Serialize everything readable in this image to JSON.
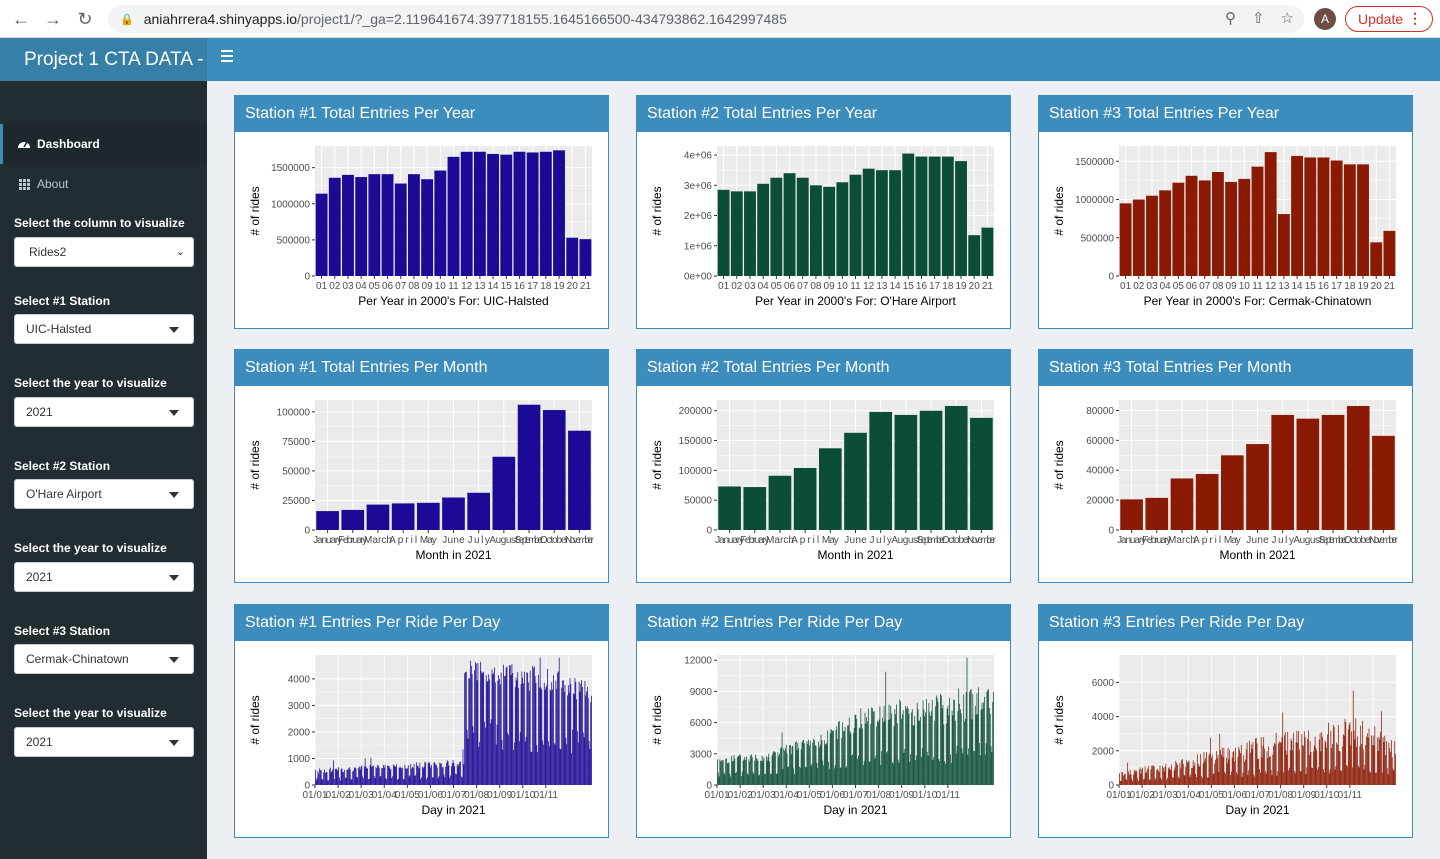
{
  "browser": {
    "url_host": "aniahrrera4.shinyapps.io",
    "url_path": "/project1/?_ga=2.119641674.397718155.1645166500-434793862.1642997485",
    "avatar_letter": "A",
    "update_label": "Update"
  },
  "app": {
    "title": "Project 1 CTA DATA -"
  },
  "sidebar": {
    "menu": [
      {
        "label": "Dashboard",
        "icon": "dashboard-icon"
      },
      {
        "label": "About",
        "icon": "th-icon"
      }
    ],
    "controls": [
      {
        "label": "Select the column to visualize",
        "value": "Rides2"
      },
      {
        "label": "Select #1 Station",
        "value": "UIC-Halsted"
      },
      {
        "label": "Select the year to visualize",
        "value": "2021"
      },
      {
        "label": "Select #2 Station",
        "value": "O'Hare Airport"
      },
      {
        "label": "Select the year to visualize",
        "value": "2021"
      },
      {
        "label": "Select #3 Station",
        "value": "Cermak-Chinatown"
      },
      {
        "label": "Select the year to visualize",
        "value": "2021"
      }
    ]
  },
  "colors": {
    "station1": "#1a0a96",
    "station2": "#0b4d38",
    "station3": "#8b1a05",
    "header": "#3c8dbc",
    "sidebar": "#222d32"
  },
  "chart_data": [
    {
      "id": "s1-year",
      "title": "Station #1 Total Entries Per Year",
      "type": "bar",
      "color_key": "station1",
      "xlabel": "Per Year in 2000's For: UIC-Halsted",
      "ylabel": "# of rides",
      "categories": [
        "01",
        "02",
        "03",
        "04",
        "05",
        "06",
        "07",
        "08",
        "09",
        "10",
        "11",
        "12",
        "13",
        "14",
        "15",
        "16",
        "17",
        "18",
        "19",
        "20",
        "21"
      ],
      "values": [
        1140000,
        1360000,
        1400000,
        1370000,
        1410000,
        1410000,
        1280000,
        1410000,
        1340000,
        1460000,
        1650000,
        1720000,
        1720000,
        1690000,
        1680000,
        1720000,
        1710000,
        1720000,
        1740000,
        530000,
        510000
      ],
      "ylim": [
        0,
        1800000
      ],
      "yticks": [
        0,
        500000,
        1000000,
        1500000
      ],
      "ytick_labels": [
        "0",
        "500000",
        "1000000",
        "1500000"
      ]
    },
    {
      "id": "s2-year",
      "title": "Station #2 Total Entries Per Year",
      "type": "bar",
      "color_key": "station2",
      "xlabel": "Per Year in 2000's For: O'Hare Airport",
      "ylabel": "# of rides",
      "categories": [
        "01",
        "02",
        "03",
        "04",
        "05",
        "06",
        "07",
        "08",
        "09",
        "10",
        "11",
        "12",
        "13",
        "14",
        "15",
        "16",
        "17",
        "18",
        "19",
        "20",
        "21"
      ],
      "values": [
        2850000,
        2800000,
        2800000,
        3050000,
        3250000,
        3400000,
        3250000,
        3000000,
        2950000,
        3100000,
        3350000,
        3550000,
        3500000,
        3500000,
        4050000,
        3950000,
        3950000,
        3950000,
        3800000,
        1350000,
        1600000
      ],
      "ylim": [
        0,
        4300000
      ],
      "yticks": [
        0,
        1000000,
        2000000,
        3000000,
        4000000
      ],
      "ytick_labels": [
        "0e+00",
        "1e+06",
        "2e+06",
        "3e+06",
        "4e+06"
      ]
    },
    {
      "id": "s3-year",
      "title": "Station #3 Total Entries Per Year",
      "type": "bar",
      "color_key": "station3",
      "xlabel": "Per Year in 2000's For: Cermak-Chinatown",
      "ylabel": "# of rides",
      "categories": [
        "01",
        "02",
        "03",
        "04",
        "05",
        "06",
        "07",
        "08",
        "09",
        "10",
        "11",
        "12",
        "13",
        "14",
        "15",
        "16",
        "17",
        "18",
        "19",
        "20",
        "21"
      ],
      "values": [
        950000,
        1000000,
        1050000,
        1120000,
        1220000,
        1310000,
        1250000,
        1360000,
        1230000,
        1270000,
        1430000,
        1620000,
        810000,
        1570000,
        1550000,
        1550000,
        1510000,
        1460000,
        1460000,
        440000,
        590000
      ],
      "ylim": [
        0,
        1700000
      ],
      "yticks": [
        0,
        500000,
        1000000,
        1500000
      ],
      "ytick_labels": [
        "0",
        "500000",
        "1000000",
        "1500000"
      ]
    },
    {
      "id": "s1-month",
      "title": "Station #1 Total Entries Per Month",
      "type": "bar",
      "color_key": "station1",
      "xlabel": "Month in 2021",
      "ylabel": "# of rides",
      "categories": [
        "January",
        "February",
        "March",
        "April",
        "May",
        "June",
        "July",
        "August",
        "September",
        "October",
        "November"
      ],
      "values": [
        16000,
        17000,
        21500,
        22500,
        23000,
        27500,
        31500,
        62000,
        106000,
        101500,
        84000
      ],
      "ylim": [
        0,
        110000
      ],
      "yticks": [
        0,
        25000,
        50000,
        75000,
        100000
      ],
      "ytick_labels": [
        "0",
        "25000",
        "50000",
        "75000",
        "100000"
      ]
    },
    {
      "id": "s2-month",
      "title": "Station #2 Total Entries Per Month",
      "type": "bar",
      "color_key": "station2",
      "xlabel": "Month in 2021",
      "ylabel": "# of rides",
      "categories": [
        "January",
        "February",
        "March",
        "April",
        "May",
        "June",
        "July",
        "August",
        "September",
        "October",
        "November"
      ],
      "values": [
        73000,
        72000,
        91000,
        104000,
        137000,
        163000,
        198000,
        193000,
        200000,
        208000,
        188000
      ],
      "ylim": [
        0,
        218000
      ],
      "yticks": [
        0,
        50000,
        100000,
        150000,
        200000
      ],
      "ytick_labels": [
        "0",
        "50000",
        "100000",
        "150000",
        "200000"
      ]
    },
    {
      "id": "s3-month",
      "title": "Station #3 Total Entries Per Month",
      "type": "bar",
      "color_key": "station3",
      "xlabel": "Month in 2021",
      "ylabel": "# of rides",
      "categories": [
        "January",
        "February",
        "March",
        "April",
        "May",
        "June",
        "July",
        "August",
        "September",
        "October",
        "November"
      ],
      "values": [
        20500,
        21500,
        34500,
        37500,
        50000,
        57500,
        77000,
        74500,
        77000,
        83000,
        63000
      ],
      "ylim": [
        0,
        87000
      ],
      "yticks": [
        0,
        20000,
        40000,
        60000,
        80000
      ],
      "ytick_labels": [
        "0",
        "20000",
        "40000",
        "60000",
        "80000"
      ]
    },
    {
      "id": "s1-day",
      "title": "Station #1 Entries Per Ride Per Day",
      "type": "bar",
      "color_key": "station1",
      "xlabel": "Day in 2021",
      "ylabel": "# of rides",
      "categories": [
        "01/01",
        "01/02",
        "01/03",
        "01/04",
        "01/05",
        "01/06",
        "01/07",
        "01/08",
        "01/09",
        "01/10",
        "01/11"
      ],
      "ylim": [
        0,
        4900
      ],
      "yticks": [
        0,
        1000,
        2000,
        3000,
        4000
      ],
      "ytick_labels": [
        "0",
        "1000",
        "2000",
        "3000",
        "4000"
      ],
      "daily_profile": [
        [
          0,
          400,
          650
        ],
        [
          60,
          550,
          750
        ],
        [
          120,
          600,
          850
        ],
        [
          180,
          700,
          1000
        ],
        [
          205,
          3900,
          4700
        ],
        [
          240,
          3600,
          4600
        ],
        [
          300,
          3300,
          4300
        ],
        [
          334,
          3100,
          3800
        ]
      ]
    },
    {
      "id": "s2-day",
      "title": "Station #2 Entries Per Ride Per Day",
      "type": "bar",
      "color_key": "station2",
      "xlabel": "Day in 2021",
      "ylabel": "# of rides",
      "categories": [
        "01/01",
        "01/02",
        "01/03",
        "01/04",
        "01/05",
        "01/06",
        "01/07",
        "01/08",
        "01/09",
        "01/10",
        "01/11"
      ],
      "ylim": [
        0,
        12500
      ],
      "yticks": [
        0,
        3000,
        6000,
        9000,
        12000
      ],
      "ytick_labels": [
        "0",
        "3000",
        "6000",
        "9000",
        "12000"
      ],
      "daily_profile": [
        [
          0,
          2000,
          2800
        ],
        [
          60,
          2200,
          3200
        ],
        [
          120,
          3500,
          5000
        ],
        [
          180,
          5500,
          7800
        ],
        [
          240,
          5500,
          8500
        ],
        [
          300,
          6000,
          9500
        ],
        [
          334,
          6500,
          9500
        ]
      ]
    },
    {
      "id": "s3-day",
      "title": "Station #3 Entries Per Ride Per Day",
      "type": "bar",
      "color_key": "station3",
      "xlabel": "Day in 2021",
      "ylabel": "# of rides",
      "categories": [
        "01/01",
        "01/02",
        "01/03",
        "01/04",
        "01/05",
        "01/06",
        "01/07",
        "01/08",
        "01/09",
        "01/10",
        "01/11"
      ],
      "ylim": [
        0,
        7600
      ],
      "yticks": [
        0,
        2000,
        4000,
        6000
      ],
      "ytick_labels": [
        "0",
        "2000",
        "4000",
        "6000"
      ],
      "daily_profile": [
        [
          0,
          500,
          900
        ],
        [
          60,
          800,
          1300
        ],
        [
          120,
          1200,
          2200
        ],
        [
          180,
          1500,
          3000
        ],
        [
          240,
          1800,
          3500
        ],
        [
          290,
          2000,
          4200
        ],
        [
          334,
          1500,
          2500
        ]
      ]
    }
  ]
}
